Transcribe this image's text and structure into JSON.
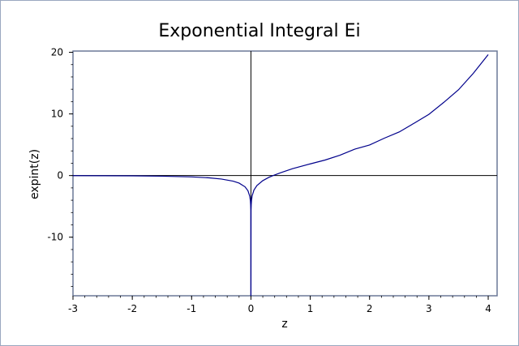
{
  "chart_data": {
    "type": "line",
    "title": "Exponential Integral Ei",
    "xlabel": "z",
    "ylabel": "expint(z)",
    "xlim": [
      -3,
      4.15
    ],
    "ylim": [
      -19.5,
      20.2
    ],
    "x_ticks": [
      -3,
      -2,
      -1,
      0,
      1,
      2,
      3,
      4
    ],
    "y_ticks": [
      -10,
      0,
      10,
      20
    ],
    "grid": false,
    "zero_lines": true,
    "series": [
      {
        "color": "#00008b",
        "x": [
          -3,
          -2.5,
          -2,
          -1.5,
          -1,
          -0.7,
          -0.5,
          -0.3,
          -0.2,
          -0.1,
          -0.05,
          -0.02,
          -0.01,
          -0.005,
          -0.002,
          0.002,
          0.005,
          0.01,
          0.02,
          0.05,
          0.1,
          0.2,
          0.3,
          0.372507,
          0.5,
          0.7,
          1,
          1.25,
          1.5,
          1.75,
          2,
          2.25,
          2.5,
          2.75,
          3,
          3.25,
          3.5,
          3.75,
          4
        ],
        "y": [
          -0.013,
          -0.0249,
          -0.0489,
          -0.1,
          -0.2194,
          -0.3738,
          -0.5598,
          -0.9057,
          -1.2227,
          -1.8229,
          -2.4679,
          -3.3547,
          -4.0379,
          -4.726,
          -5.6392,
          -5.6332,
          -4.7159,
          -4.0179,
          -3.3147,
          -2.3679,
          -1.6228,
          -0.8218,
          -0.3027,
          0.0,
          0.4542,
          1.1094,
          1.8951,
          2.5199,
          3.3013,
          4.285,
          4.9542,
          6.07,
          7.0738,
          8.488,
          9.9338,
          11.866,
          13.9254,
          16.6,
          19.6309
        ]
      }
    ]
  }
}
